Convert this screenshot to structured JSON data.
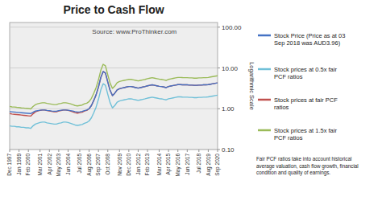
{
  "chart_data": {
    "type": "line",
    "title": "Price to Cash Flow",
    "y_label": "Logarithmic Scale",
    "annotations": [
      "Source: www.ProThinker.com",
      "Fair PCF ratios take into account historical\naverage valuation, cash flow growth, financial\ncondition and quality of earnings."
    ],
    "log": "y",
    "grid": true,
    "ylim": [
      0.1,
      130
    ],
    "yticks": [
      {
        "value": 0.1,
        "label": "0.10"
      },
      {
        "value": 1,
        "label": "1.00"
      },
      {
        "value": 10,
        "label": "10.00"
      },
      {
        "value": 100,
        "label": "100.00"
      }
    ],
    "categories": [
      "Dec 1997",
      null,
      null,
      null,
      "Jan 1999",
      null,
      null,
      null,
      "Feb 2000",
      null,
      null,
      null,
      null,
      "Mar 2001",
      null,
      null,
      null,
      "Apr 2002",
      null,
      null,
      null,
      "May 2003",
      null,
      null,
      null,
      "Jun 2004",
      null,
      null,
      null,
      null,
      "Jul 2005",
      null,
      null,
      null,
      "Aug 2006",
      null,
      null,
      null,
      "Sep 2007",
      null,
      null,
      null,
      "Oct 2008",
      null,
      null,
      null,
      null,
      "Nov 2009",
      null,
      null,
      null,
      "Dec 2010",
      null,
      null,
      null,
      "Jan 2012",
      null,
      null,
      null,
      "Feb 2013",
      null,
      null,
      null,
      null,
      "Mar 2014",
      null,
      null,
      null,
      "Apr 2015",
      null,
      null,
      null,
      "May 2016",
      null,
      null,
      null,
      "Jun 2017",
      null,
      null,
      null,
      null,
      "Jul 2018",
      null,
      null,
      null,
      "Aug 2019",
      null,
      null,
      null,
      "Sep 2020"
    ],
    "series": [
      {
        "name": "Stock Price (Price as at 03\nSep 2018 was AUD3.96)",
        "color": "#4472c4",
        "values": [
          0.85,
          0.84,
          0.83,
          0.82,
          0.81,
          0.8,
          0.79,
          0.78,
          0.77,
          0.76,
          0.82,
          0.88,
          0.9,
          0.92,
          0.93,
          0.93,
          0.91,
          0.9,
          0.88,
          0.87,
          0.87,
          0.9,
          0.92,
          0.93,
          0.93,
          0.92,
          0.9,
          0.88,
          0.85,
          0.83,
          0.84,
          0.86,
          0.9,
          0.93,
          1.0,
          1.2,
          1.6,
          2.2,
          3.4,
          5.8,
          8.2,
          7.5,
          4.5,
          2.8,
          2.1,
          2.4,
          2.9,
          3.1,
          3.2,
          3.3,
          3.4,
          3.5,
          3.5,
          3.4,
          3.3,
          3.2,
          3.3,
          3.4,
          3.5,
          3.65,
          3.75,
          3.85,
          3.75,
          3.65,
          3.55,
          3.5,
          3.4,
          3.3,
          3.5,
          3.6,
          3.7,
          3.8,
          3.9,
          3.9,
          3.86,
          3.85,
          3.85,
          3.8,
          3.8,
          3.75,
          3.75,
          3.8,
          3.8,
          3.85,
          3.85,
          3.9,
          4.0,
          4.1,
          4.2,
          4.3
        ]
      },
      {
        "name": "Stock prices at 0.5x fair\nPCF ratios",
        "color": "#70c0d8",
        "values": [
          0.38,
          0.37,
          0.37,
          0.36,
          0.36,
          0.35,
          0.35,
          0.34,
          0.34,
          0.33,
          0.38,
          0.42,
          0.44,
          0.46,
          0.47,
          0.47,
          0.45,
          0.44,
          0.43,
          0.42,
          0.42,
          0.44,
          0.45,
          0.47,
          0.47,
          0.46,
          0.44,
          0.42,
          0.4,
          0.39,
          0.4,
          0.41,
          0.44,
          0.46,
          0.5,
          0.6,
          0.8,
          1.1,
          1.7,
          2.9,
          4.1,
          3.75,
          2.25,
          1.4,
          1.05,
          1.2,
          1.45,
          1.55,
          1.6,
          1.65,
          1.7,
          1.75,
          1.75,
          1.7,
          1.65,
          1.6,
          1.65,
          1.7,
          1.75,
          1.82,
          1.87,
          1.92,
          1.87,
          1.82,
          1.77,
          1.75,
          1.7,
          1.65,
          1.75,
          1.8,
          1.85,
          1.9,
          1.95,
          1.95,
          1.93,
          1.92,
          1.92,
          1.9,
          1.9,
          1.87,
          1.87,
          1.9,
          1.9,
          1.92,
          1.92,
          1.95,
          2.0,
          2.05,
          2.1,
          2.15
        ]
      },
      {
        "name": "Stock prices at fair PCF\nratios",
        "color": "#c0504d",
        "values": [
          0.76,
          0.74,
          0.73,
          0.72,
          0.71,
          0.7,
          0.69,
          0.68,
          0.67,
          0.66,
          0.75,
          0.84,
          0.88,
          0.91,
          0.93,
          0.93,
          0.9,
          0.88,
          0.86,
          0.84,
          0.84,
          0.88,
          0.9,
          0.93,
          0.93,
          0.91,
          0.88,
          0.84,
          0.8,
          0.78,
          0.8,
          0.82,
          0.88,
          0.91,
          1.0,
          1.2,
          1.6,
          2.2,
          3.4,
          5.8,
          8.2,
          7.5,
          4.5,
          2.8,
          2.1,
          2.4,
          2.9,
          3.1,
          3.2,
          3.3,
          3.4,
          3.5,
          3.5,
          3.4,
          3.3,
          3.2,
          3.3,
          3.4,
          3.5,
          3.65,
          3.75,
          3.85,
          3.75,
          3.65,
          3.55,
          3.5,
          3.4,
          3.3,
          3.5,
          3.6,
          3.7,
          3.8,
          3.9,
          3.9,
          3.86,
          3.85,
          3.85,
          3.8,
          3.8,
          3.75,
          3.75,
          3.8,
          3.8,
          3.85,
          3.85,
          3.9,
          4.0,
          4.1,
          4.2,
          4.3
        ]
      },
      {
        "name": "Stock prices at 1.5x fair\nPCF ratios",
        "color": "#9bbb59",
        "values": [
          1.14,
          1.11,
          1.1,
          1.08,
          1.07,
          1.05,
          1.04,
          1.02,
          1.01,
          0.99,
          1.13,
          1.26,
          1.32,
          1.37,
          1.4,
          1.4,
          1.35,
          1.32,
          1.29,
          1.26,
          1.26,
          1.32,
          1.35,
          1.4,
          1.4,
          1.37,
          1.32,
          1.26,
          1.2,
          1.17,
          1.2,
          1.23,
          1.32,
          1.37,
          1.5,
          1.8,
          2.4,
          3.3,
          5.1,
          8.7,
          12.3,
          11.25,
          6.75,
          4.2,
          3.15,
          3.6,
          4.35,
          4.65,
          4.8,
          4.95,
          5.1,
          5.25,
          5.25,
          5.1,
          4.95,
          4.8,
          4.95,
          5.1,
          5.25,
          5.47,
          5.62,
          5.77,
          5.62,
          5.47,
          5.32,
          5.25,
          5.1,
          4.95,
          5.25,
          5.4,
          5.55,
          5.7,
          5.85,
          5.85,
          5.79,
          5.77,
          5.77,
          5.7,
          5.7,
          5.62,
          5.62,
          5.7,
          5.7,
          5.77,
          5.77,
          5.85,
          6.0,
          6.15,
          6.3,
          6.45
        ]
      }
    ]
  }
}
